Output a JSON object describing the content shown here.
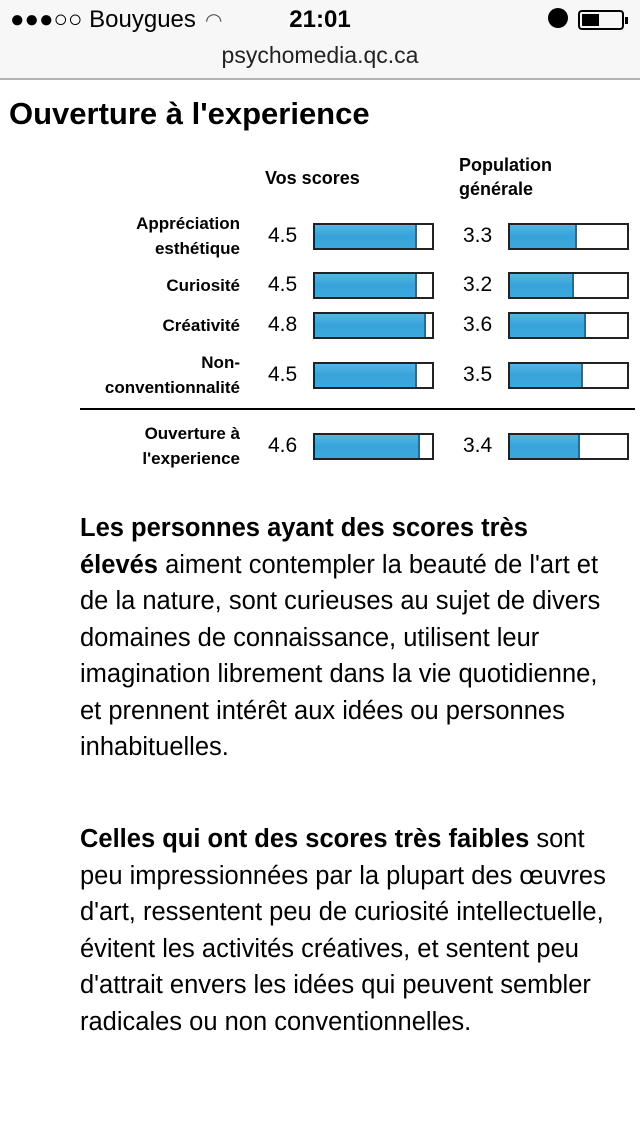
{
  "status_bar": {
    "carrier": "●●●○○ Bouygues",
    "time": "21:01"
  },
  "url": "psychomedia.qc.ca",
  "title": "Ouverture à l'experience",
  "table": {
    "headers": {
      "yours": "Vos scores",
      "population": "Population générale"
    },
    "scale": [
      1,
      5
    ],
    "rows": [
      {
        "label": "Appréciation esthétique",
        "score": 4.5,
        "population": 3.3
      },
      {
        "label": "Curiosité",
        "score": 4.5,
        "population": 3.2
      },
      {
        "label": "Créativité",
        "score": 4.8,
        "population": 3.6
      },
      {
        "label": "Non-conventionnalité",
        "score": 4.5,
        "population": 3.5
      }
    ],
    "total": {
      "label": "Ouverture à l'experience",
      "score": 4.6,
      "population": 3.4
    }
  },
  "paragraphs": [
    {
      "bold": "Les personnes ayant des scores très élevés",
      "text": " aiment contempler la beauté de l'art et de la nature, sont curieuses au sujet de divers domaines de connaissance, utilisent leur imagination librement dans la vie quotidienne, et prennent intérêt aux idées ou personnes inhabituelles."
    },
    {
      "bold": "Celles qui ont des scores très faibles",
      "text": " sont peu impressionnées par la plupart des œuvres d'art, ressentent peu de curiosité intellectuelle, évitent les activités créatives, et sentent peu d'attrait envers les idées qui peuvent sembler radicales ou non conventionnelles."
    }
  ]
}
